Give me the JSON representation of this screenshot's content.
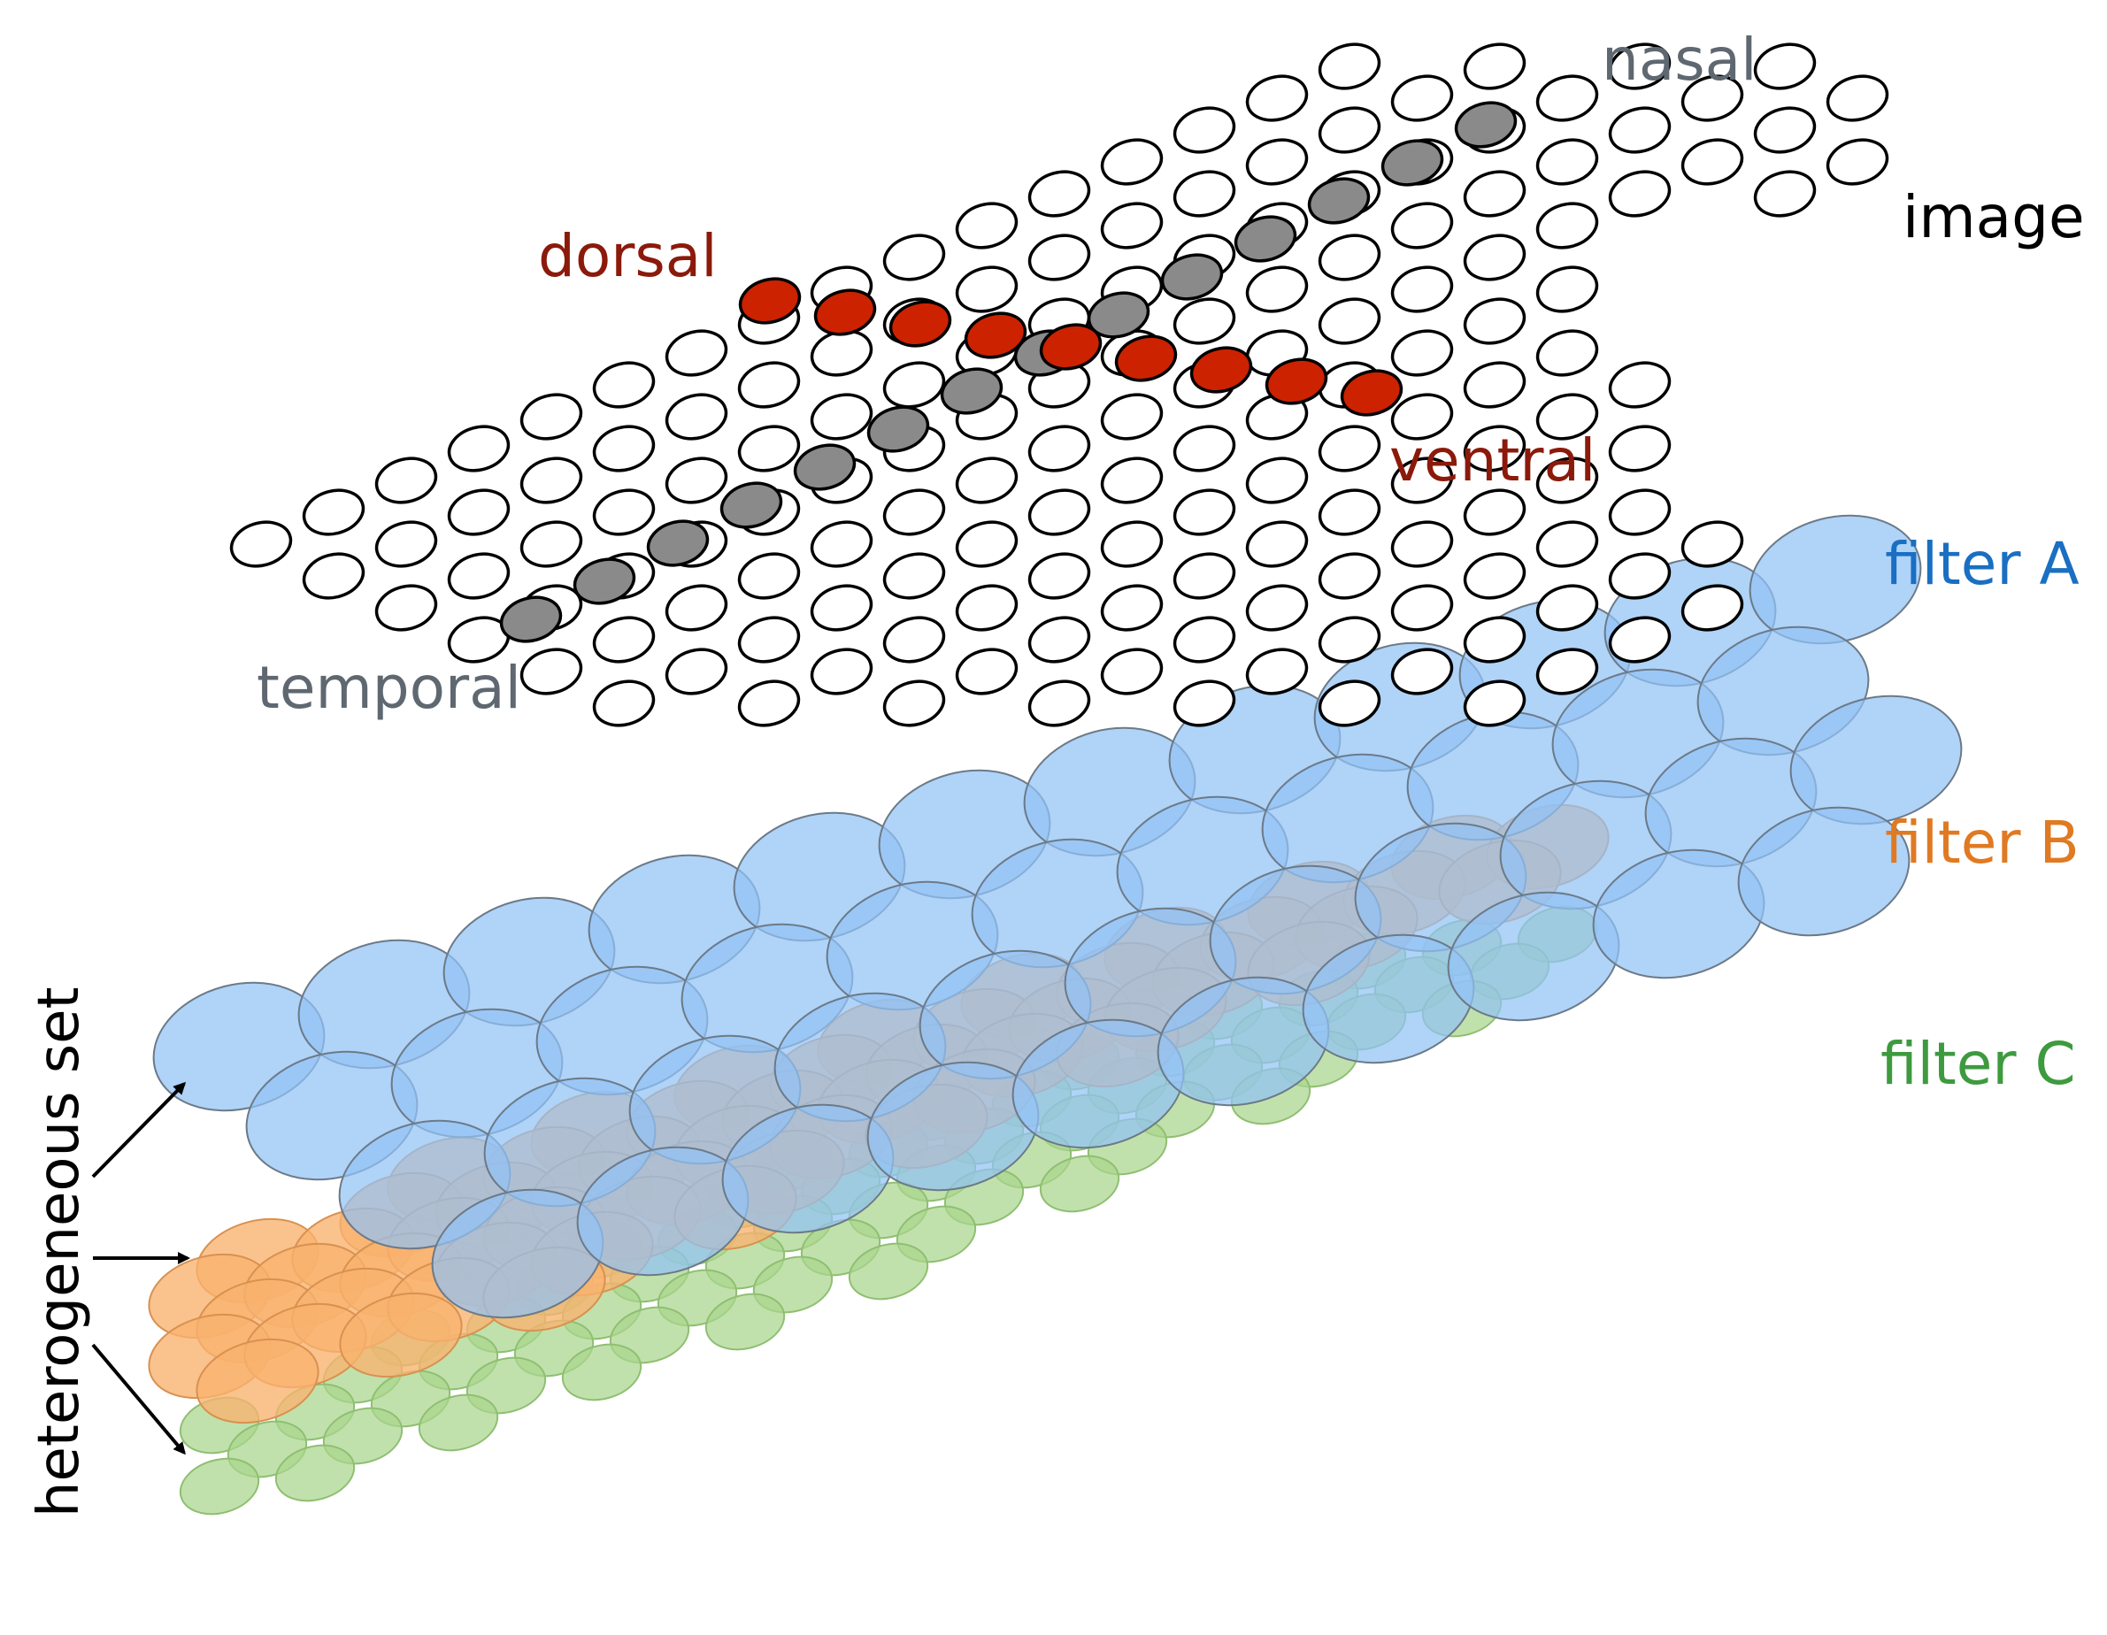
{
  "labels": {
    "nasal": "nasal",
    "image": "image",
    "dorsal": "dorsal",
    "ventral": "ventral",
    "temporal": "temporal",
    "filter_a": "filter A",
    "filter_b": "filter B",
    "filter_c": "filter C",
    "heterogeneous_set": "heterogeneous set"
  },
  "colors": {
    "image_cell_fill": "#ffffff",
    "image_cell_stroke": "#000000",
    "temporal_nasal_axis": "#8a8a8a",
    "dorsal_ventral_axis": "#cc2200",
    "filter_a": "#92c2f5",
    "filter_b": "#f9b26e",
    "filter_c": "#a9d58c",
    "label_nasal": "#5f6870",
    "label_temporal": "#5f6870",
    "label_dorsal": "#8b1a0b",
    "label_ventral": "#8b1a0b",
    "label_image": "#000000",
    "label_filter_a": "#1a6fc2",
    "label_filter_b": "#e07a22",
    "label_filter_c": "#3e9a3e",
    "arrow": "#000000"
  },
  "layers": {
    "image": {
      "grid_rows": 12,
      "grid_cols": 22
    },
    "filter_a": {
      "grid_rows": 4,
      "grid_cols": 12
    },
    "filter_b": {
      "grid_rows": 8,
      "grid_cols": 10
    },
    "filter_c": {
      "grid_rows": 8,
      "grid_cols": 11
    }
  }
}
